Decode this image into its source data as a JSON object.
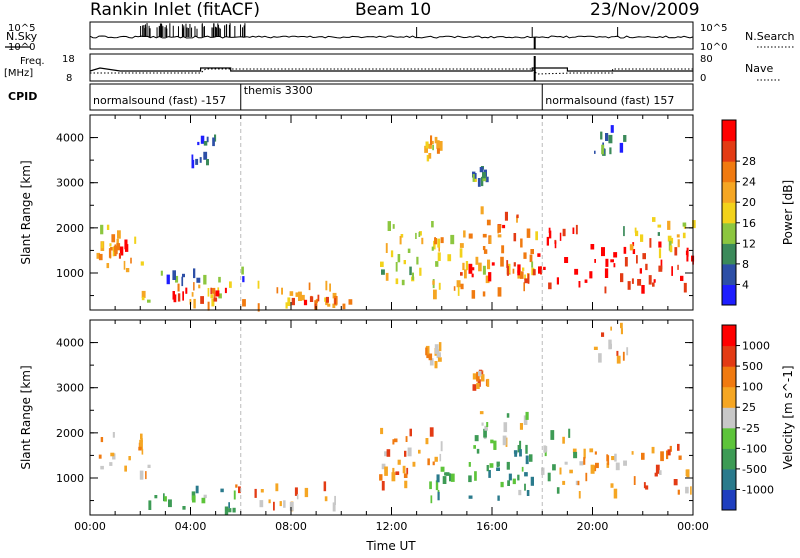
{
  "header": {
    "station": "Rankin Inlet (fitACF)",
    "beam": "Beam 10",
    "date": "23/Nov/2009"
  },
  "status_panels": {
    "nsky": {
      "label": "N.Sky",
      "left_ticks": [
        "10^5",
        "10^0"
      ],
      "right_label": "N.Search",
      "right_ticks": [
        "10^5",
        "10^0"
      ]
    },
    "freq": {
      "label_line1": "Freq.",
      "label_line2": "[MHz]",
      "left_ticks": [
        "18",
        "8"
      ],
      "right_label": "Nave",
      "right_ticks": [
        "80",
        "0"
      ]
    },
    "cpid": {
      "label": "CPID",
      "segments": [
        {
          "text": "normalsound (fast) -157",
          "start_h": 0
        },
        {
          "text": "themis 3300",
          "start_h": 6
        },
        {
          "text": "normalsound (fast) 157",
          "start_h": 18
        }
      ]
    }
  },
  "chart_data": [
    {
      "type": "heatmap",
      "panel": "power",
      "xlabel": "",
      "ylabel": "Slant Range [km]",
      "xlim": [
        0,
        24
      ],
      "ylim": [
        180,
        4500
      ],
      "yticks": [
        1000,
        2000,
        3000,
        4000
      ],
      "colorbar": {
        "label": "Power [dB]",
        "tick_labels": [
          "4",
          "8",
          "12",
          "16",
          "20",
          "24",
          "28"
        ],
        "colors": [
          "#1e1eff",
          "#2d4fa6",
          "#3b8a5a",
          "#8cc63f",
          "#f2d21b",
          "#f5a623",
          "#f07a10",
          "#e33b14",
          "#ff0000"
        ]
      },
      "regions": [
        {
          "t": [
            0.1,
            2.3
          ],
          "r": [
            1050,
            2050
          ],
          "level": 0.55
        },
        {
          "t": [
            0.7,
            1.4
          ],
          "r": [
            1350,
            1700
          ],
          "level": 0.85
        },
        {
          "t": [
            1.9,
            6.2
          ],
          "r": [
            800,
            1100
          ],
          "level": 0.25
        },
        {
          "t": [
            2.0,
            10.0
          ],
          "r": [
            200,
            750
          ],
          "level": 0.55
        },
        {
          "t": [
            3.2,
            5.5
          ],
          "r": [
            400,
            650
          ],
          "level": 0.85
        },
        {
          "t": [
            8.0,
            10.3
          ],
          "r": [
            250,
            450
          ],
          "level": 0.85
        },
        {
          "t": [
            11.5,
            14.0
          ],
          "r": [
            700,
            2100
          ],
          "level": 0.45
        },
        {
          "t": [
            13.5,
            17.8
          ],
          "r": [
            500,
            1900
          ],
          "level": 0.6
        },
        {
          "t": [
            14.5,
            17.8
          ],
          "r": [
            800,
            1400
          ],
          "level": 0.9
        },
        {
          "t": [
            15.5,
            17.5
          ],
          "r": [
            1700,
            2450
          ],
          "level": 0.8
        },
        {
          "t": [
            17.8,
            19.4
          ],
          "r": [
            700,
            2000
          ],
          "level": 0.95
        },
        {
          "t": [
            19.4,
            24.0
          ],
          "r": [
            600,
            1700
          ],
          "level": 0.95
        },
        {
          "t": [
            21.0,
            24.0
          ],
          "r": [
            1400,
            2200
          ],
          "level": 0.5
        },
        {
          "t": [
            13.3,
            13.9
          ],
          "r": [
            3500,
            3950
          ],
          "level": 0.55
        },
        {
          "t": [
            15.2,
            15.8
          ],
          "r": [
            3000,
            3350
          ],
          "level": 0.3
        },
        {
          "t": [
            4.0,
            5.0
          ],
          "r": [
            3400,
            4000
          ],
          "level": 0.15
        },
        {
          "t": [
            20.0,
            21.5
          ],
          "r": [
            3600,
            4400
          ],
          "level": 0.2
        }
      ]
    },
    {
      "type": "heatmap",
      "panel": "velocity",
      "xlabel": "Time UT",
      "ylabel": "Slant Range [km]",
      "xlim": [
        0,
        24
      ],
      "ylim": [
        180,
        4500
      ],
      "xticks": [
        "00:00",
        "04:00",
        "08:00",
        "12:00",
        "16:00",
        "20:00",
        "00:00"
      ],
      "yticks": [
        1000,
        2000,
        3000,
        4000
      ],
      "colorbar": {
        "label": "Velocity [m s^-1]",
        "tick_labels": [
          "1000",
          "500",
          "100",
          "25",
          "-25",
          "-100",
          "-500",
          "-1000"
        ],
        "colors": [
          "#1f3fbf",
          "#2a7a8c",
          "#3d9b55",
          "#5dc43a",
          "#c8c8c8",
          "#f5a623",
          "#f07a10",
          "#e33b14",
          "#ff0000"
        ]
      },
      "regions": [
        {
          "t": [
            0.1,
            2.3
          ],
          "r": [
            1050,
            2050
          ],
          "level": 0.62
        },
        {
          "t": [
            2.0,
            6.0
          ],
          "r": [
            250,
            750
          ],
          "level": 0.3
        },
        {
          "t": [
            5.5,
            10.0
          ],
          "r": [
            350,
            850
          ],
          "level": 0.65
        },
        {
          "t": [
            11.5,
            14.0
          ],
          "r": [
            700,
            2100
          ],
          "level": 0.68
        },
        {
          "t": [
            13.5,
            17.8
          ],
          "r": [
            500,
            1900
          ],
          "level": 0.3
        },
        {
          "t": [
            15.5,
            17.5
          ],
          "r": [
            1700,
            2450
          ],
          "level": 0.45
        },
        {
          "t": [
            17.8,
            19.4
          ],
          "r": [
            700,
            2000
          ],
          "level": 0.45
        },
        {
          "t": [
            19.4,
            24.0
          ],
          "r": [
            600,
            1700
          ],
          "level": 0.68
        },
        {
          "t": [
            13.3,
            13.9
          ],
          "r": [
            3500,
            3950
          ],
          "level": 0.62
        },
        {
          "t": [
            15.2,
            15.8
          ],
          "r": [
            3000,
            3350
          ],
          "level": 0.7
        },
        {
          "t": [
            20.0,
            21.5
          ],
          "r": [
            3600,
            4400
          ],
          "level": 0.66
        }
      ]
    }
  ]
}
